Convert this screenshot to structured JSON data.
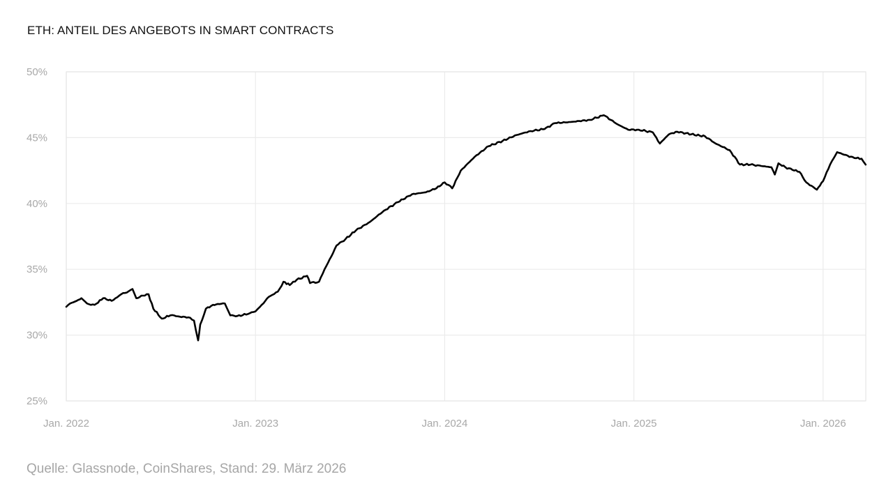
{
  "chart_data": {
    "type": "line",
    "title": "ETH: ANTEIL DES ANGEBOTS IN SMART CONTRACTS",
    "xlabel": "",
    "ylabel": "",
    "source": "Quelle: Glassnode, CoinShares, Stand: 29. März 2026",
    "xlim": [
      2022.0,
      2026.23
    ],
    "ylim": [
      25,
      50
    ],
    "grid": true,
    "legend": "none",
    "x_ticks": [
      {
        "value": 2022,
        "label": "Jan. 2022"
      },
      {
        "value": 2023,
        "label": "Jan. 2023"
      },
      {
        "value": 2024,
        "label": "Jan. 2024"
      },
      {
        "value": 2025,
        "label": "Jan. 2025"
      },
      {
        "value": 2026,
        "label": "Jan. 2026"
      }
    ],
    "y_ticks": [
      {
        "value": 50,
        "label": "50%"
      },
      {
        "value": 45,
        "label": "45%"
      },
      {
        "value": 40,
        "label": "40%"
      },
      {
        "value": 35,
        "label": "35%"
      },
      {
        "value": 30,
        "label": "30%"
      },
      {
        "value": 25,
        "label": "25%"
      }
    ],
    "series": [
      {
        "name": "Anteil des Angebots in Smart Contracts",
        "color": "#000000",
        "x": [
          2022.0,
          2022.02,
          2022.055,
          2022.08,
          2022.11,
          2022.15,
          2022.195,
          2022.24,
          2022.28,
          2022.31,
          2022.35,
          2022.37,
          2022.405,
          2022.435,
          2022.46,
          2022.505,
          2022.55,
          2022.6,
          2022.645,
          2022.675,
          2022.697,
          2022.708,
          2022.738,
          2022.775,
          2022.81,
          2022.838,
          2022.867,
          2022.904,
          2022.96,
          2023.0,
          2023.033,
          2023.07,
          2023.118,
          2023.148,
          2023.181,
          2023.218,
          2023.273,
          2023.288,
          2023.336,
          2023.365,
          2023.402,
          2023.428,
          2023.476,
          2023.531,
          2023.605,
          2023.679,
          2023.753,
          2023.827,
          2023.9,
          2023.956,
          2024.0,
          2024.04,
          2024.085,
          2024.159,
          2024.232,
          2024.306,
          2024.38,
          2024.454,
          2024.528,
          2024.583,
          2024.675,
          2024.767,
          2024.841,
          2024.915,
          2024.97,
          2025.026,
          2025.1,
          2025.137,
          2025.185,
          2025.229,
          2025.303,
          2025.376,
          2025.432,
          2025.506,
          2025.561,
          2025.616,
          2025.672,
          2025.727,
          2025.745,
          2025.764,
          2025.801,
          2025.838,
          2025.875,
          2025.911,
          2025.967,
          2026.0,
          2026.037,
          2026.074,
          2026.111,
          2026.166,
          2026.203,
          2026.225
        ],
        "y": [
          32.15,
          32.4,
          32.6,
          32.8,
          32.4,
          32.3,
          32.8,
          32.6,
          33.0,
          33.2,
          33.5,
          32.8,
          33.0,
          33.1,
          32.0,
          31.25,
          31.5,
          31.4,
          31.35,
          31.1,
          29.6,
          30.8,
          32.0,
          32.3,
          32.35,
          32.4,
          31.5,
          31.45,
          31.6,
          31.8,
          32.3,
          32.9,
          33.3,
          34.05,
          33.8,
          34.2,
          34.5,
          33.95,
          34.05,
          35.0,
          36.0,
          36.8,
          37.3,
          37.95,
          38.6,
          39.45,
          40.1,
          40.7,
          40.85,
          41.15,
          41.6,
          41.15,
          42.5,
          43.55,
          44.35,
          44.75,
          45.2,
          45.5,
          45.65,
          46.1,
          46.2,
          46.35,
          46.7,
          46.0,
          45.6,
          45.6,
          45.4,
          44.55,
          45.25,
          45.45,
          45.25,
          45.1,
          44.55,
          44.05,
          42.95,
          42.95,
          42.85,
          42.75,
          42.2,
          43.05,
          42.75,
          42.55,
          42.4,
          41.6,
          41.05,
          41.7,
          42.95,
          43.9,
          43.7,
          43.45,
          43.4,
          42.95
        ]
      }
    ]
  }
}
